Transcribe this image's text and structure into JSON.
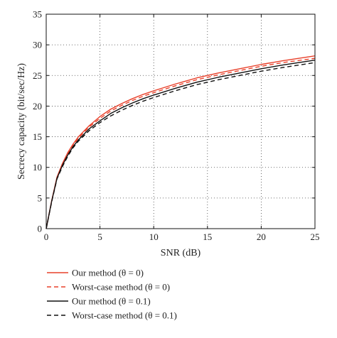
{
  "chart_data": {
    "type": "line",
    "xlabel": "SNR (dB)",
    "ylabel": "Secrecy capacity (bit/sec/Hz)",
    "xlim": [
      0,
      25
    ],
    "ylim": [
      0,
      35
    ],
    "xticks": [
      "0",
      "5",
      "10",
      "15",
      "20",
      "25"
    ],
    "yticks": [
      "0",
      "5",
      "10",
      "15",
      "20",
      "25",
      "30",
      "35"
    ],
    "grid": true,
    "legend_position": "below",
    "x": [
      0,
      0.5,
      1,
      1.5,
      2,
      2.5,
      3,
      4,
      5,
      6,
      7,
      8,
      9,
      10,
      12,
      14,
      16,
      18,
      20,
      22,
      25
    ],
    "series": [
      {
        "name": "Our method (θ = 0)",
        "color": "#e8402a",
        "dash": "solid",
        "values": [
          0,
          4.5,
          8.4,
          10.6,
          12.4,
          13.8,
          15.0,
          16.8,
          18.3,
          19.5,
          20.4,
          21.2,
          21.9,
          22.5,
          23.6,
          24.6,
          25.4,
          26.1,
          26.8,
          27.4,
          28.2
        ]
      },
      {
        "name": "Worst-case method (θ = 0)",
        "color": "#e8402a",
        "dash": "dashed",
        "values": [
          0,
          4.4,
          8.3,
          10.4,
          12.2,
          13.6,
          14.8,
          16.6,
          18.0,
          19.2,
          20.1,
          20.9,
          21.6,
          22.2,
          23.3,
          24.3,
          25.1,
          25.8,
          26.5,
          27.1,
          27.8
        ]
      },
      {
        "name": "Our method (θ = 0.1)",
        "color": "#111111",
        "dash": "solid",
        "values": [
          0,
          4.4,
          8.2,
          10.3,
          12.0,
          13.4,
          14.5,
          16.3,
          17.6,
          18.8,
          19.7,
          20.5,
          21.2,
          21.8,
          22.9,
          23.9,
          24.7,
          25.4,
          26.1,
          26.7,
          27.5
        ]
      },
      {
        "name": "Worst-case method (θ = 0.1)",
        "color": "#111111",
        "dash": "dashed",
        "values": [
          0,
          4.3,
          8.1,
          10.1,
          11.8,
          13.2,
          14.3,
          16.0,
          17.3,
          18.4,
          19.3,
          20.1,
          20.8,
          21.4,
          22.5,
          23.5,
          24.3,
          25.0,
          25.7,
          26.3,
          27.1
        ]
      }
    ]
  }
}
